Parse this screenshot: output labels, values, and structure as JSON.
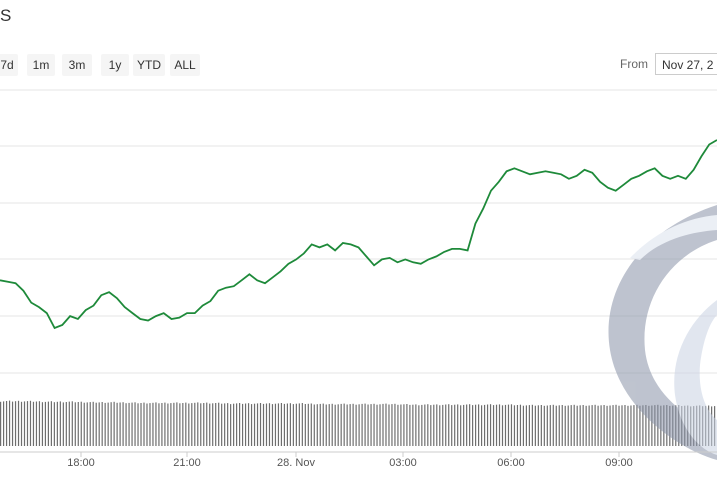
{
  "header": {
    "title": "S"
  },
  "range_selector": {
    "buttons": [
      {
        "label": "7d"
      },
      {
        "label": "1m"
      },
      {
        "label": "3m"
      },
      {
        "label": "1y"
      },
      {
        "label": "YTD"
      },
      {
        "label": "ALL"
      }
    ]
  },
  "date_range": {
    "from_label": "From",
    "from_value": "Nov 27, 2"
  },
  "colors": {
    "line": "#1e8a3a",
    "grid": "#e6e6e6",
    "volume": "#6e6e6e",
    "watermark": "#8a93a8"
  },
  "chart_data": {
    "type": "line",
    "x_ticks": [
      "18:00",
      "21:00",
      "28. Nov",
      "03:00",
      "06:00",
      "09:00"
    ],
    "series": [
      {
        "values": [
          0.62,
          0.61,
          0.6,
          0.55,
          0.47,
          0.44,
          0.4,
          0.3,
          0.32,
          0.38,
          0.36,
          0.42,
          0.45,
          0.52,
          0.54,
          0.5,
          0.44,
          0.4,
          0.36,
          0.35,
          0.38,
          0.4,
          0.36,
          0.37,
          0.4,
          0.4,
          0.45,
          0.48,
          0.55,
          0.57,
          0.58,
          0.62,
          0.66,
          0.62,
          0.6,
          0.64,
          0.68,
          0.73,
          0.76,
          0.8,
          0.86,
          0.84,
          0.86,
          0.82,
          0.87,
          0.86,
          0.84,
          0.78,
          0.72,
          0.76,
          0.77,
          0.74,
          0.76,
          0.74,
          0.73,
          0.76,
          0.78,
          0.81,
          0.83,
          0.83,
          0.82,
          1.0,
          1.1,
          1.22,
          1.28,
          1.35,
          1.37,
          1.35,
          1.33,
          1.34,
          1.35,
          1.34,
          1.33,
          1.3,
          1.32,
          1.36,
          1.34,
          1.28,
          1.24,
          1.22,
          1.26,
          1.3,
          1.32,
          1.35,
          1.37,
          1.32,
          1.3,
          1.32,
          1.3,
          1.36,
          1.45,
          1.53,
          1.56
        ]
      },
      {
        "name": "Volume",
        "values": [
          0.76,
          0.76,
          0.75,
          0.75,
          0.74,
          0.74,
          0.73,
          0.73,
          0.73,
          0.73,
          0.72,
          0.72,
          0.72,
          0.72,
          0.71,
          0.71,
          0.71,
          0.71,
          0.7,
          0.7,
          0.7,
          0.7,
          0.7,
          0.69,
          0.69,
          0.69,
          0.69,
          0.69,
          0.69,
          0.69,
          0.68,
          0.68
        ]
      }
    ]
  }
}
